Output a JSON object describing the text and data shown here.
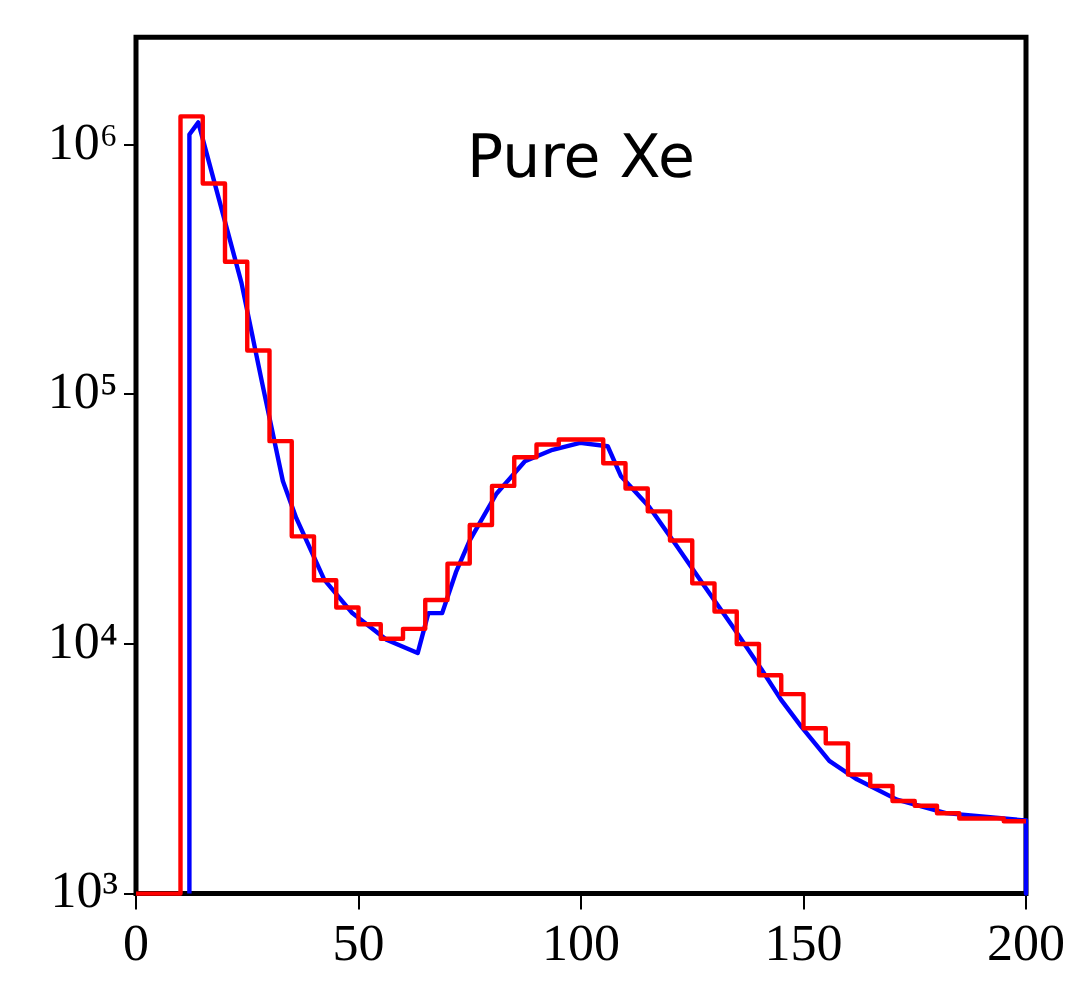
{
  "chart_data": {
    "type": "line",
    "title": "Pure Xe",
    "log": "y",
    "grid": false,
    "legend": false,
    "marker": "none",
    "line_style": "solid",
    "xlim": [
      0,
      200
    ],
    "xticks": [
      0,
      50,
      100,
      150,
      200
    ],
    "ylim": [
      1000,
      2700000
    ],
    "yticks": [
      {
        "value": 1000,
        "label": "10³"
      },
      {
        "value": 10000,
        "label": "10⁴"
      },
      {
        "value": 100000,
        "label": "10⁵"
      },
      {
        "value": 1000000,
        "label": "10⁶"
      }
    ],
    "series": [
      {
        "type": "step",
        "color": "#ff0000",
        "x": [
          0,
          5,
          10,
          15,
          20,
          25,
          30,
          35,
          40,
          45,
          50,
          55,
          60,
          65,
          70,
          75,
          80,
          85,
          90,
          95,
          100,
          105,
          110,
          115,
          120,
          125,
          130,
          135,
          140,
          145,
          150,
          155,
          160,
          165,
          170,
          175,
          180,
          185,
          190,
          195,
          200
        ],
        "values": [
          1000,
          1000,
          1300000,
          700000,
          340000,
          150000,
          65000,
          27000,
          18000,
          14000,
          12000,
          10500,
          11500,
          15000,
          21000,
          30000,
          43000,
          56000,
          63000,
          66000,
          66000,
          53000,
          42000,
          34000,
          26000,
          17500,
          13500,
          10000,
          7500,
          6300,
          4600,
          4000,
          3000,
          2700,
          2350,
          2250,
          2100,
          2000,
          2000,
          1950,
          1950
        ]
      },
      {
        "type": "line",
        "color": "#0000ff",
        "x": [
          12,
          12,
          14,
          23.7,
          28.4,
          33,
          36,
          42.3,
          48.6,
          56.3,
          63.3,
          65.7,
          68.8,
          71.9,
          75,
          81,
          87.4,
          93.6,
          99.8,
          106,
          109,
          115.3,
          121.6,
          127.8,
          134,
          140.2,
          144.9,
          149.5,
          155.8,
          162,
          171,
          182,
          199,
          200,
          200
        ],
        "values": [
          1000,
          1100000,
          1230000,
          280000,
          110000,
          45000,
          32000,
          18100,
          13300,
          10400,
          9200,
          13300,
          13300,
          19400,
          26000,
          40000,
          54000,
          60000,
          64000,
          62000,
          47000,
          35500,
          24600,
          17000,
          11800,
          8100,
          6000,
          4670,
          3400,
          2870,
          2380,
          2100,
          1970,
          1970,
          1000
        ]
      }
    ]
  }
}
